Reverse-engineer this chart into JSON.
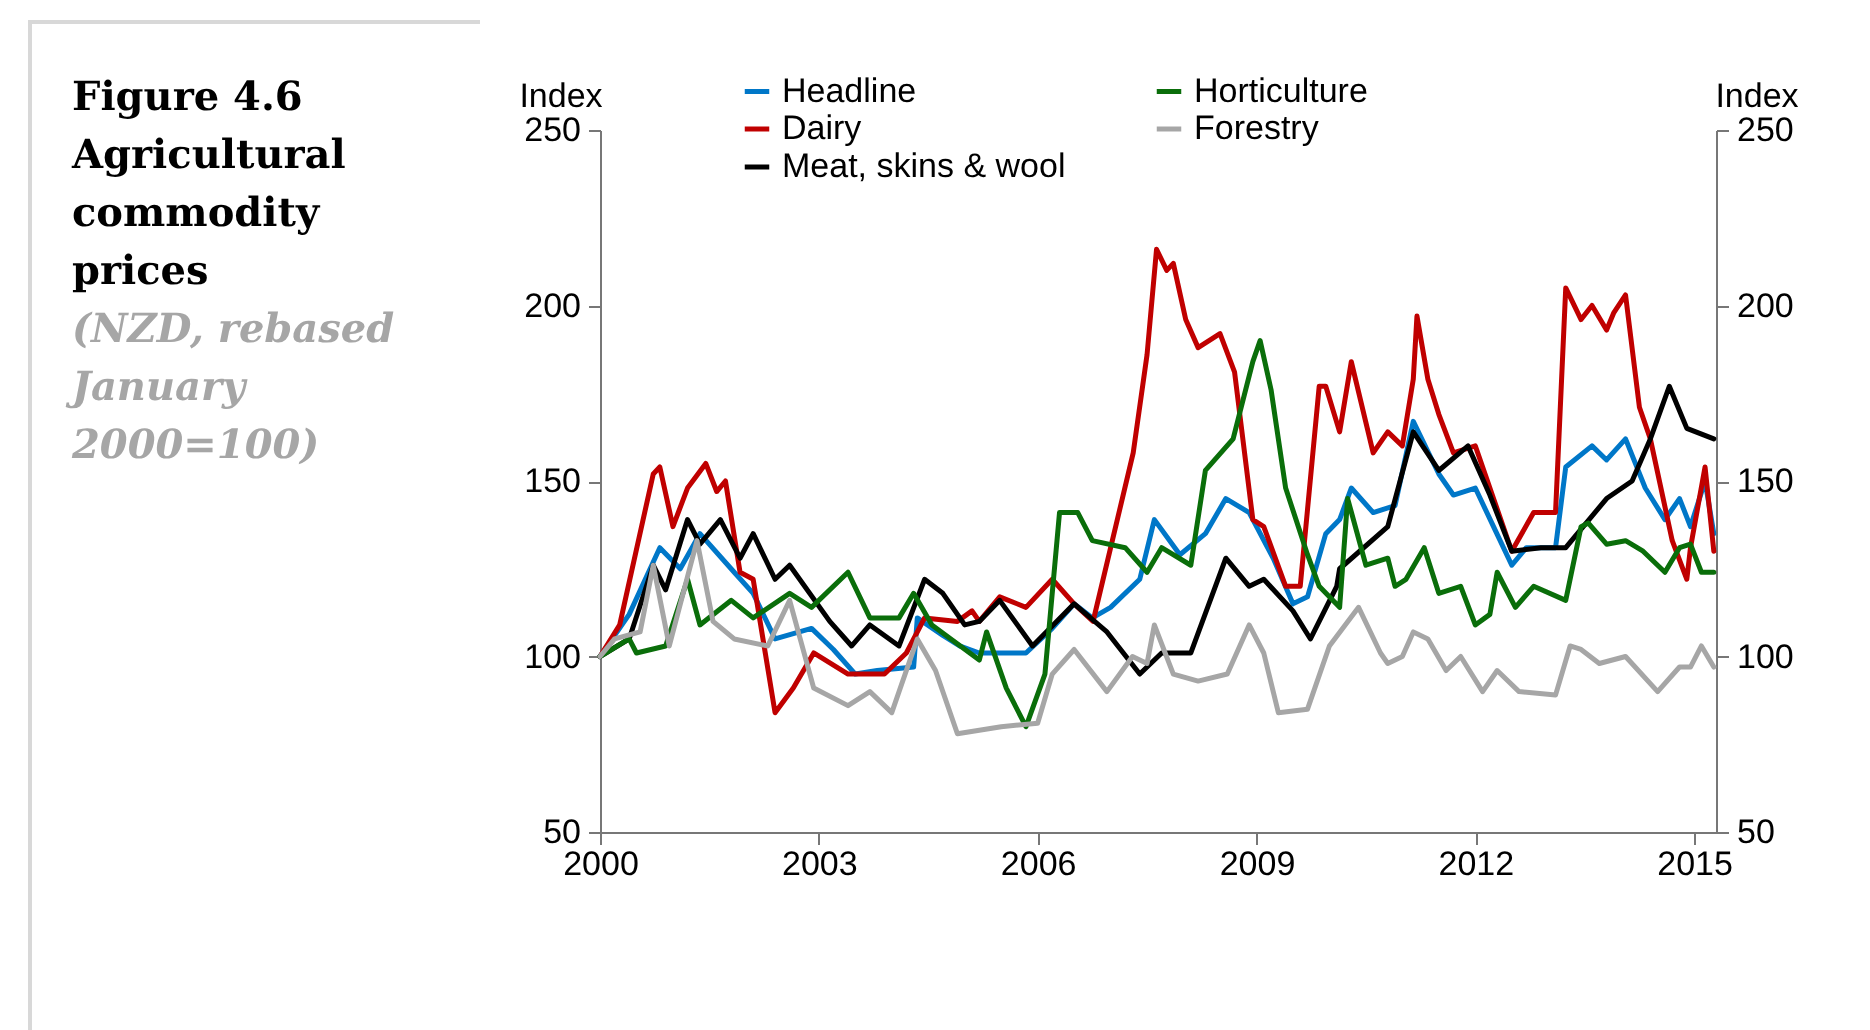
{
  "chart_data": {
    "type": "line",
    "title": "Figure 4.6 Agricultural commodity prices",
    "subtitle": "(NZD, rebased January 2000=100)",
    "ylabel": "Index",
    "y2label": "Index",
    "xlim": [
      2000,
      2015.3
    ],
    "xticks": [
      2000,
      2003,
      2006,
      2009,
      2012,
      2015
    ],
    "ylim": [
      50,
      250
    ],
    "yticks": [
      50,
      100,
      150,
      200,
      250
    ],
    "y2lim": [
      50,
      250
    ],
    "y2ticks": [
      50,
      100,
      150,
      200,
      250
    ],
    "grid": false,
    "legend": "top",
    "series": [
      {
        "name": "Headline",
        "color": "#0077c8",
        "x": [
          2000,
          2000.4,
          2000.82,
          2001.1,
          2001.37,
          2001.84,
          2002.1,
          2002.4,
          2002.9,
          2003.2,
          2003.5,
          2003.8,
          2004.3,
          2004.35,
          2004.7,
          2004.93,
          2005.2,
          2005.84,
          2006.2,
          2006.5,
          2006.75,
          2007.0,
          2007.4,
          2007.6,
          2007.95,
          2008.3,
          2008.58,
          2008.9,
          2009.23,
          2009.5,
          2009.7,
          2009.95,
          2010.14,
          2010.3,
          2010.6,
          2010.9,
          2011.15,
          2011.5,
          2011.7,
          2012.0,
          2012.25,
          2012.5,
          2012.7,
          2013.1,
          2013.24,
          2013.6,
          2013.8,
          2014.06,
          2014.33,
          2014.6,
          2014.8,
          2014.95,
          2015.15,
          2015.27
        ],
        "values": [
          100,
          112,
          131,
          125,
          135,
          124,
          118,
          105,
          108,
          102,
          95,
          96,
          97,
          111,
          106,
          103,
          101,
          101,
          108,
          115,
          111,
          114,
          122,
          139,
          129,
          135,
          145,
          141,
          128,
          115,
          117,
          135,
          139,
          148,
          141,
          143,
          167,
          152,
          146,
          148,
          137,
          126,
          131,
          131,
          154,
          160,
          156,
          162,
          148,
          139,
          145,
          137,
          150,
          135
        ]
      },
      {
        "name": "Dairy",
        "color": "#c00000",
        "x": [
          2000,
          2000.27,
          2000.73,
          2000.82,
          2001.0,
          2001.2,
          2001.45,
          2001.6,
          2001.72,
          2001.92,
          2002.1,
          2002.4,
          2002.65,
          2002.93,
          2003.4,
          2003.9,
          2004.2,
          2004.45,
          2004.9,
          2005.1,
          2005.2,
          2005.48,
          2005.84,
          2006.2,
          2006.5,
          2006.76,
          2007.31,
          2007.5,
          2007.63,
          2007.77,
          2007.86,
          2008.03,
          2008.2,
          2008.5,
          2008.7,
          2008.95,
          2009.1,
          2009.4,
          2009.6,
          2009.86,
          2009.95,
          2010.14,
          2010.3,
          2010.6,
          2010.8,
          2011.0,
          2011.15,
          2011.2,
          2011.35,
          2011.5,
          2011.7,
          2012.0,
          2012.25,
          2012.5,
          2012.8,
          2013.1,
          2013.24,
          2013.45,
          2013.6,
          2013.8,
          2013.9,
          2014.06,
          2014.25,
          2014.4,
          2014.7,
          2014.9,
          2014.95,
          2015.15,
          2015.27
        ],
        "values": [
          100,
          109,
          152,
          154,
          137,
          148,
          155,
          147,
          150,
          124,
          122,
          84,
          91,
          101,
          95,
          95,
          101,
          111,
          110,
          113,
          110,
          117,
          114,
          122,
          115,
          110,
          158,
          186,
          216,
          210,
          212,
          196,
          188,
          192,
          181,
          139,
          137,
          120,
          120,
          177,
          177,
          164,
          184,
          158,
          164,
          160,
          179,
          197,
          179,
          169,
          158,
          160,
          145,
          130,
          141,
          141,
          205,
          196,
          200,
          193,
          198,
          203,
          171,
          162,
          133,
          122,
          131,
          154,
          130
        ]
      },
      {
        "name": "Meat, skins & wool",
        "color": "#000000",
        "x": [
          2000,
          2000.4,
          2000.73,
          2000.9,
          2001.2,
          2001.37,
          2001.65,
          2001.92,
          2002.1,
          2002.4,
          2002.6,
          2003.15,
          2003.45,
          2003.7,
          2004.1,
          2004.45,
          2004.7,
          2005.0,
          2005.2,
          2005.48,
          2005.93,
          2006.5,
          2006.95,
          2007.4,
          2007.7,
          2008.1,
          2008.58,
          2008.9,
          2009.1,
          2009.5,
          2009.74,
          2010.1,
          2010.14,
          2010.8,
          2011.15,
          2011.5,
          2011.9,
          2012.2,
          2012.5,
          2012.9,
          2013.24,
          2013.8,
          2014.15,
          2014.4,
          2014.66,
          2014.9,
          2015.27
        ],
        "values": [
          100,
          105,
          126,
          119,
          139,
          132,
          139,
          128,
          135,
          122,
          126,
          110,
          103,
          109,
          103,
          122,
          118,
          109,
          110,
          116,
          103,
          115,
          107,
          95,
          101,
          101,
          128,
          120,
          122,
          113,
          105,
          120,
          125,
          137,
          164,
          153,
          160,
          146,
          130,
          131,
          131,
          145,
          150,
          162,
          177,
          165,
          162
        ]
      },
      {
        "name": "Horticulture",
        "color": "#0a6e0a",
        "x": [
          2000,
          2000.4,
          2000.5,
          2000.9,
          2001.2,
          2001.37,
          2001.8,
          2002.1,
          2002.6,
          2002.9,
          2003.4,
          2003.7,
          2004.1,
          2004.3,
          2004.55,
          2005.2,
          2005.3,
          2005.57,
          2005.84,
          2006.1,
          2006.3,
          2006.55,
          2006.75,
          2007.2,
          2007.5,
          2007.7,
          2008.1,
          2008.3,
          2008.68,
          2008.95,
          2009.05,
          2009.2,
          2009.4,
          2009.7,
          2009.86,
          2010.14,
          2010.25,
          2010.5,
          2010.8,
          2010.9,
          2011.05,
          2011.3,
          2011.5,
          2011.8,
          2012.0,
          2012.2,
          2012.3,
          2012.55,
          2012.8,
          2013.24,
          2013.45,
          2013.55,
          2013.8,
          2014.06,
          2014.3,
          2014.6,
          2014.8,
          2014.95,
          2015.1,
          2015.27
        ],
        "values": [
          100,
          105,
          101,
          103,
          122,
          109,
          116,
          111,
          118,
          114,
          124,
          111,
          111,
          118,
          109,
          99,
          107,
          91,
          80,
          95,
          141,
          141,
          133,
          131,
          124,
          131,
          126,
          153,
          162,
          184,
          190,
          176,
          148,
          129,
          120,
          114,
          145,
          126,
          128,
          120,
          122,
          131,
          118,
          120,
          109,
          112,
          124,
          114,
          120,
          116,
          137,
          138,
          132,
          133,
          130,
          124,
          131,
          132,
          124,
          124
        ]
      },
      {
        "name": "Forestry",
        "color": "#a6a6a6",
        "x": [
          2000,
          2000.2,
          2000.55,
          2000.73,
          2000.95,
          2001.33,
          2001.55,
          2001.84,
          2002.3,
          2002.6,
          2002.93,
          2003.4,
          2003.7,
          2004.0,
          2004.35,
          2004.6,
          2004.9,
          2005.5,
          2006.0,
          2006.2,
          2006.5,
          2006.95,
          2007.3,
          2007.5,
          2007.6,
          2007.86,
          2008.2,
          2008.6,
          2008.9,
          2009.1,
          2009.3,
          2009.7,
          2010.0,
          2010.4,
          2010.7,
          2010.8,
          2011.0,
          2011.15,
          2011.35,
          2011.6,
          2011.8,
          2012.1,
          2012.3,
          2012.6,
          2013.1,
          2013.3,
          2013.45,
          2013.7,
          2014.06,
          2014.5,
          2014.8,
          2014.95,
          2015.1,
          2015.27
        ],
        "values": [
          100,
          105,
          107,
          126,
          103,
          133,
          110,
          105,
          103,
          116,
          91,
          86,
          90,
          84,
          105,
          96,
          78,
          80,
          81,
          95,
          102,
          90,
          100,
          98,
          109,
          95,
          93,
          95,
          109,
          101,
          84,
          85,
          103,
          114,
          101,
          98,
          100,
          107,
          105,
          96,
          100,
          90,
          96,
          90,
          89,
          103,
          102,
          98,
          100,
          90,
          97,
          97,
          103,
          97
        ]
      }
    ]
  }
}
